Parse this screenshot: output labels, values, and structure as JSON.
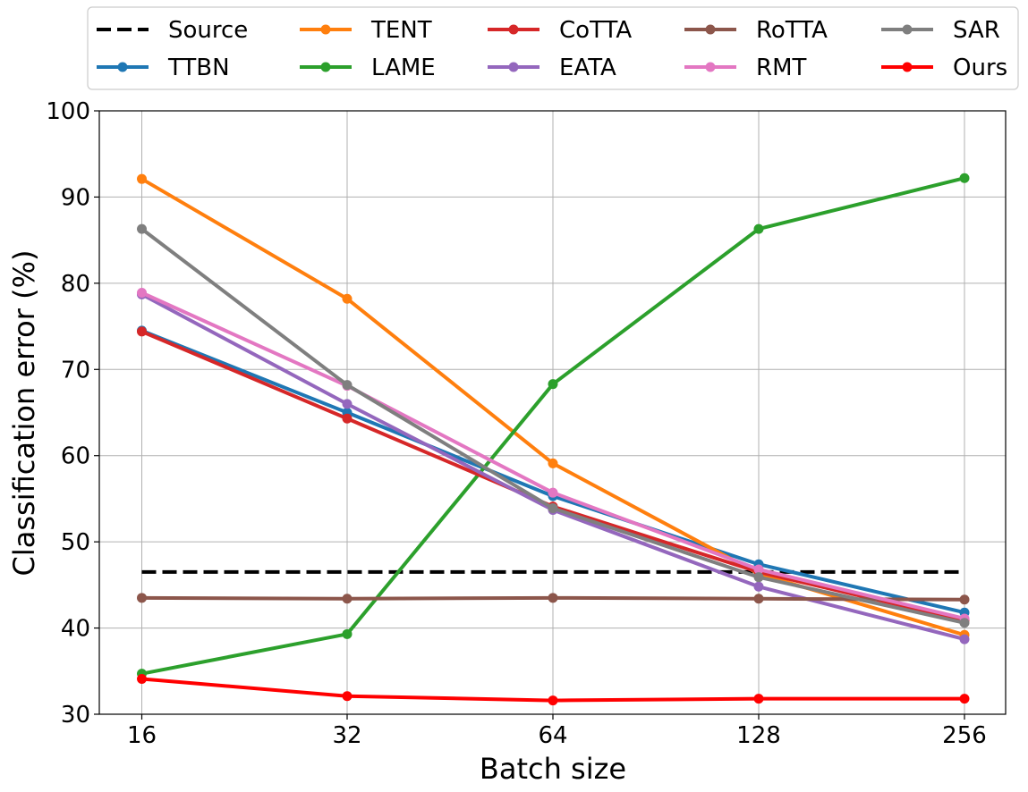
{
  "chart_data": {
    "type": "line",
    "title": "",
    "xlabel": "Batch size",
    "ylabel": "Classification error (%)",
    "categories": [
      "16",
      "32",
      "64",
      "128",
      "256"
    ],
    "ylim": [
      30,
      100
    ],
    "yticks": [
      30,
      40,
      50,
      60,
      70,
      80,
      90,
      100
    ],
    "grid": true,
    "legend_position": "top",
    "series": [
      {
        "name": "Source",
        "color": "#000000",
        "style": "dashed",
        "values": [
          46.5,
          46.5,
          46.5,
          46.5,
          46.5
        ]
      },
      {
        "name": "TTBN",
        "color": "#1f77b4",
        "style": "solid",
        "values": [
          74.5,
          65.0,
          55.3,
          47.4,
          41.8
        ]
      },
      {
        "name": "TENT",
        "color": "#ff7f0e",
        "style": "solid",
        "values": [
          92.1,
          78.2,
          59.1,
          46.3,
          39.2
        ]
      },
      {
        "name": "LAME",
        "color": "#2ca02c",
        "style": "solid",
        "values": [
          34.7,
          39.3,
          68.3,
          86.3,
          92.2
        ]
      },
      {
        "name": "CoTTA",
        "color": "#d62728",
        "style": "solid",
        "values": [
          74.4,
          64.3,
          54.1,
          46.5,
          40.9
        ]
      },
      {
        "name": "EATA",
        "color": "#9467bd",
        "style": "solid",
        "values": [
          78.7,
          66.0,
          53.7,
          44.8,
          38.7
        ]
      },
      {
        "name": "RoTTA",
        "color": "#8c564b",
        "style": "solid",
        "values": [
          43.5,
          43.4,
          43.5,
          43.4,
          43.3
        ]
      },
      {
        "name": "RMT",
        "color": "#e377c2",
        "style": "solid",
        "values": [
          78.9,
          68.1,
          55.7,
          46.8,
          41.1
        ]
      },
      {
        "name": "SAR",
        "color": "#7f7f7f",
        "style": "solid",
        "values": [
          86.3,
          68.2,
          53.9,
          45.9,
          40.6
        ]
      },
      {
        "name": "Ours",
        "color": "#ff0000",
        "style": "solid",
        "values": [
          34.1,
          32.1,
          31.6,
          31.8,
          31.8
        ]
      }
    ]
  }
}
